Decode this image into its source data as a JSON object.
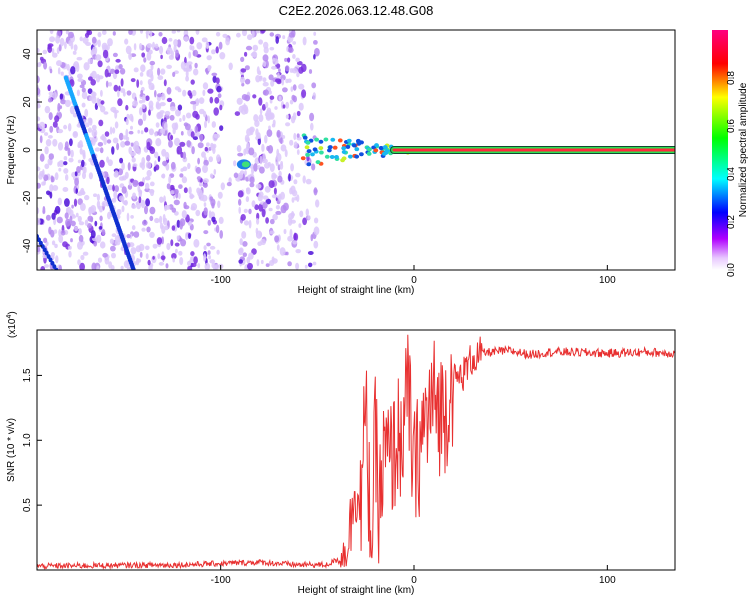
{
  "title": "C2E2.2026.063.12.48.G08",
  "chart_data": [
    {
      "type": "heatmap",
      "name": "spectrogram",
      "xlabel": "Height of straight line (km)",
      "ylabel": "Frequency (Hz)",
      "xlim": [
        -195,
        135
      ],
      "ylim": [
        -50,
        50
      ],
      "xticks": [
        -100,
        0,
        100
      ],
      "yticks": [
        -40,
        -20,
        0,
        20,
        40
      ],
      "colorbar": {
        "label": "Normalized spectral amplitude",
        "range": [
          0.0,
          1.0
        ],
        "ticks": [
          "0.0",
          "0.2",
          "0.4",
          "0.6",
          "0.8"
        ],
        "tick_values": [
          0.0,
          0.2,
          0.4,
          0.6,
          0.8
        ],
        "colors": [
          "#ffffff",
          "#b000ff",
          "#0000ff",
          "#00ffff",
          "#00ff00",
          "#ffff00",
          "#ff0000",
          "#ff0080"
        ]
      },
      "features": [
        {
          "name": "tone-line",
          "x_range": [
            0,
            135
          ],
          "y": 0,
          "amplitude": 1.0
        },
        {
          "name": "diagonal-track",
          "x_range": [
            -180,
            -145
          ],
          "y_range": [
            30,
            -50
          ]
        },
        {
          "name": "noise-region",
          "x_range": [
            -195,
            -50
          ]
        }
      ]
    },
    {
      "type": "line",
      "name": "snr",
      "xlabel": "Height of straight line (km)",
      "ylabel": "SNR (10 * v/v)",
      "multiplier": "(x10",
      "multiplier_exp": "4",
      "xlim": [
        -195,
        135
      ],
      "ylim": [
        0,
        18500
      ],
      "xticks": [
        -100,
        0,
        100
      ],
      "yticks": [
        "0.5",
        "1.0",
        "1.5"
      ],
      "ytick_values": [
        5000,
        10000,
        15000
      ],
      "color": "#e83030",
      "series": {
        "x": [
          -195,
          -120,
          -80,
          -60,
          -45,
          -37,
          -33,
          -30,
          -28,
          -25,
          -22,
          -20,
          -18,
          -15,
          -12,
          -10,
          -5,
          -3,
          0,
          5,
          10,
          15,
          20,
          25,
          30,
          35,
          40,
          50,
          60,
          70,
          80,
          100,
          120,
          135
        ],
        "y": [
          300,
          400,
          600,
          400,
          400,
          1000,
          3000,
          8000,
          4000,
          12000,
          2000,
          10000,
          5000,
          9000,
          8000,
          9500,
          11000,
          14000,
          7000,
          11000,
          13000,
          12000,
          14500,
          15000,
          16300,
          16700,
          16800,
          16900,
          16600,
          16800,
          16800,
          16700,
          16800,
          16700
        ]
      }
    }
  ]
}
